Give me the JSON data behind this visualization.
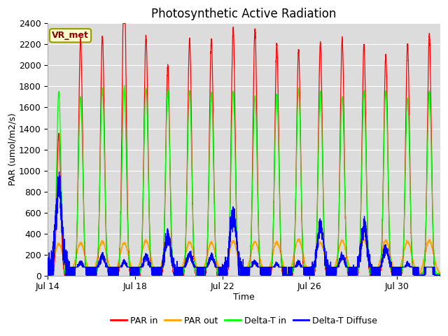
{
  "title": "Photosynthetic Active Radiation",
  "xlabel": "Time",
  "ylabel": "PAR (umol/m2/s)",
  "ylim": [
    0,
    2400
  ],
  "yticks": [
    0,
    200,
    400,
    600,
    800,
    1000,
    1200,
    1400,
    1600,
    1800,
    2000,
    2200,
    2400
  ],
  "xtick_labels": [
    "Jul 14",
    "Jul 18",
    "Jul 22",
    "Jul 26",
    "Jul 30"
  ],
  "xtick_positions": [
    0,
    4,
    8,
    12,
    16
  ],
  "legend_labels": [
    "PAR in",
    "PAR out",
    "Delta-T in",
    "Delta-T Diffuse"
  ],
  "annotation_text": "VR_met",
  "annotation_bg": "#ffffcc",
  "annotation_border": "#999900",
  "plot_bg": "#dcdcdc",
  "figure_bg": "#ffffff",
  "n_days": 18,
  "peak_PAR_in": [
    1350,
    2250,
    2280,
    2900,
    2280,
    2000,
    2250,
    2250,
    2350,
    2350,
    2200,
    2150,
    2220,
    2250,
    2200,
    2100,
    2200,
    2300
  ],
  "peak_PAR_out": [
    300,
    310,
    320,
    310,
    330,
    310,
    315,
    310,
    325,
    320,
    315,
    340,
    310,
    330,
    340,
    330,
    320,
    330
  ],
  "peak_DeltaT_in": [
    1750,
    1700,
    1780,
    1800,
    1780,
    1760,
    1750,
    1740,
    1750,
    1700,
    1720,
    1780,
    1750,
    1700,
    1750,
    1750,
    1680,
    1750
  ],
  "peak_DeltaT_diffuse": [
    820,
    120,
    180,
    130,
    180,
    370,
    200,
    180,
    580,
    130,
    110,
    120,
    470,
    180,
    460,
    250,
    110,
    20
  ],
  "title_fontsize": 12,
  "label_fontsize": 9,
  "tick_fontsize": 9,
  "legend_fontsize": 9,
  "line_width": 0.9,
  "figsize": [
    6.4,
    4.8
  ],
  "dpi": 100
}
